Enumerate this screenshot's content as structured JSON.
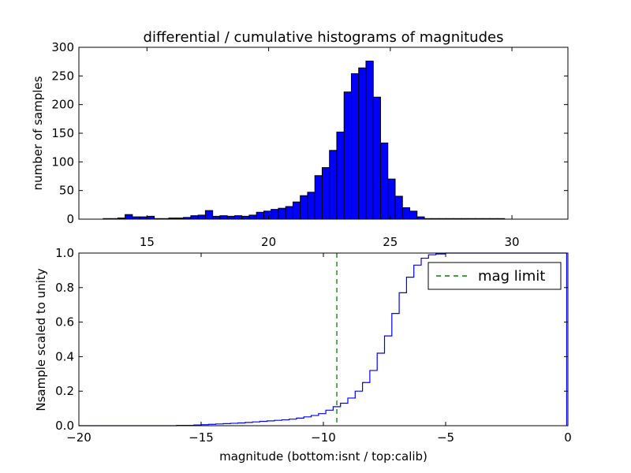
{
  "title": "differential / cumulative histograms of magnitudes",
  "chart_data": [
    {
      "type": "bar",
      "title": "differential / cumulative histograms of magnitudes",
      "xlabel": "",
      "ylabel": "number of samples",
      "xlim": [
        12.2,
        32.3
      ],
      "ylim": [
        0,
        300
      ],
      "xticks": [
        "15",
        "20",
        "25",
        "30"
      ],
      "yticks": [
        "0",
        "50",
        "100",
        "150",
        "200",
        "250",
        "300"
      ],
      "bar_color": "#0000ff",
      "bins": [
        [
          13.2,
          13.5,
          1
        ],
        [
          13.5,
          13.8,
          1
        ],
        [
          13.8,
          14.1,
          2
        ],
        [
          14.1,
          14.4,
          8
        ],
        [
          14.4,
          14.7,
          4
        ],
        [
          14.7,
          15.0,
          4
        ],
        [
          15.0,
          15.3,
          5
        ],
        [
          15.3,
          15.6,
          1
        ],
        [
          15.6,
          15.9,
          1
        ],
        [
          15.9,
          16.2,
          2
        ],
        [
          16.2,
          16.5,
          2
        ],
        [
          16.5,
          16.8,
          3
        ],
        [
          16.8,
          17.1,
          6
        ],
        [
          17.1,
          17.4,
          7
        ],
        [
          17.4,
          17.7,
          15
        ],
        [
          17.7,
          18.0,
          5
        ],
        [
          18.0,
          18.3,
          6
        ],
        [
          18.3,
          18.6,
          5
        ],
        [
          18.6,
          18.9,
          6
        ],
        [
          18.9,
          19.2,
          5
        ],
        [
          19.2,
          19.5,
          7
        ],
        [
          19.5,
          19.8,
          12
        ],
        [
          19.8,
          20.1,
          14
        ],
        [
          20.1,
          20.4,
          17
        ],
        [
          20.4,
          20.7,
          19
        ],
        [
          20.7,
          21.0,
          22
        ],
        [
          21.0,
          21.3,
          30
        ],
        [
          21.3,
          21.6,
          41
        ],
        [
          21.6,
          21.9,
          47
        ],
        [
          21.9,
          22.2,
          76
        ],
        [
          22.2,
          22.5,
          90
        ],
        [
          22.5,
          22.8,
          120
        ],
        [
          22.8,
          23.1,
          152
        ],
        [
          23.1,
          23.4,
          222
        ],
        [
          23.4,
          23.7,
          254
        ],
        [
          23.7,
          24.0,
          264
        ],
        [
          24.0,
          24.3,
          276
        ],
        [
          24.3,
          24.6,
          213
        ],
        [
          24.6,
          24.9,
          133
        ],
        [
          24.9,
          25.2,
          70
        ],
        [
          25.2,
          25.5,
          40
        ],
        [
          25.5,
          25.8,
          20
        ],
        [
          25.8,
          26.1,
          14
        ],
        [
          26.1,
          26.4,
          4
        ],
        [
          26.4,
          26.7,
          1
        ],
        [
          26.7,
          27.0,
          1
        ],
        [
          27.0,
          27.3,
          1
        ],
        [
          27.3,
          27.6,
          1
        ],
        [
          27.6,
          27.9,
          1
        ],
        [
          27.9,
          28.2,
          1
        ],
        [
          28.2,
          28.5,
          1
        ],
        [
          28.5,
          28.8,
          1
        ],
        [
          28.8,
          29.1,
          1
        ],
        [
          29.1,
          29.4,
          1
        ],
        [
          29.4,
          29.7,
          1
        ]
      ]
    },
    {
      "type": "line",
      "title": "",
      "xlabel": "magnitude (bottom:isnt / top:calib)",
      "ylabel": "Nsample scaled to unity",
      "xlim": [
        -20,
        0
      ],
      "ylim": [
        0,
        1.0
      ],
      "xticks": [
        "−20",
        "−15",
        "−10",
        "−5",
        "0"
      ],
      "yticks": [
        "0.0",
        "0.2",
        "0.4",
        "0.6",
        "0.8",
        "1.0"
      ],
      "line_color": "#0000ff",
      "step_x": [
        -20.0,
        -18.0,
        -16.0,
        -15.3,
        -15.0,
        -14.7,
        -14.4,
        -14.1,
        -13.8,
        -13.5,
        -13.2,
        -12.9,
        -12.6,
        -12.3,
        -12.0,
        -11.7,
        -11.4,
        -11.1,
        -10.8,
        -10.5,
        -10.2,
        -9.9,
        -9.6,
        -9.3,
        -9.0,
        -8.7,
        -8.4,
        -8.1,
        -7.8,
        -7.5,
        -7.2,
        -6.9,
        -6.6,
        -6.3,
        -6.0,
        -5.7,
        -5.4,
        -5.0,
        -0.05
      ],
      "step_y": [
        0.0,
        0.0,
        0.002,
        0.004,
        0.006,
        0.008,
        0.01,
        0.012,
        0.014,
        0.016,
        0.019,
        0.022,
        0.025,
        0.028,
        0.031,
        0.034,
        0.038,
        0.044,
        0.051,
        0.059,
        0.07,
        0.09,
        0.11,
        0.13,
        0.16,
        0.2,
        0.25,
        0.32,
        0.42,
        0.52,
        0.65,
        0.77,
        0.86,
        0.93,
        0.97,
        0.99,
        0.995,
        1.0,
        1.0
      ],
      "mag_limit": {
        "x": -9.45,
        "label": "mag limit",
        "color": "#008000",
        "style": "dashed"
      },
      "legend_location": "upper right"
    }
  ]
}
